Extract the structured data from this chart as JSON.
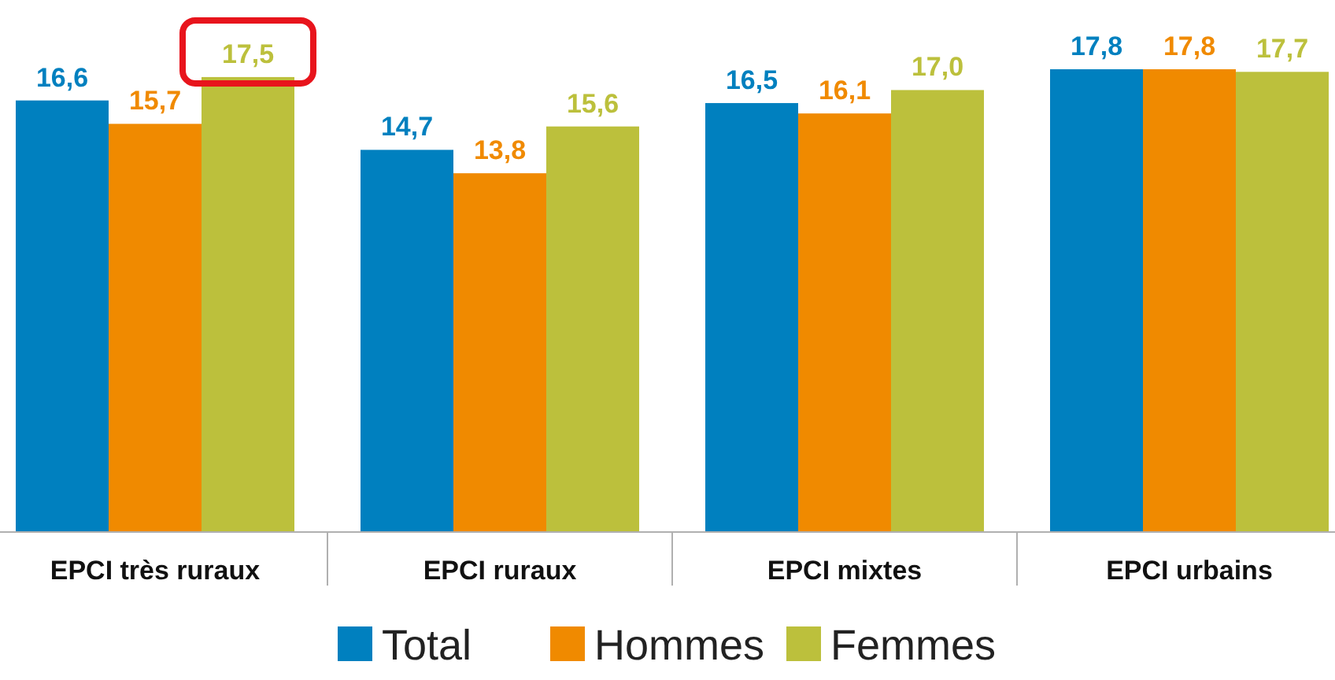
{
  "chart_data": {
    "type": "bar",
    "categories": [
      "EPCI très ruraux",
      "EPCI ruraux",
      "EPCI mixtes",
      "EPCI urbains"
    ],
    "series": [
      {
        "name": "Total",
        "color": "#0080bf",
        "values": [
          16.6,
          14.7,
          16.5,
          17.8
        ],
        "value_labels": [
          "16,6",
          "14,7",
          "16,5",
          "17,8"
        ]
      },
      {
        "name": "Hommes",
        "color": "#f08a00",
        "values": [
          15.7,
          13.8,
          16.1,
          17.8
        ],
        "value_labels": [
          "15,7",
          "13,8",
          "16,1",
          "17,8"
        ]
      },
      {
        "name": "Femmes",
        "color": "#bcc03c",
        "values": [
          17.5,
          15.6,
          17.0,
          17.7
        ],
        "value_labels": [
          "17,5",
          "15,6",
          "17,0",
          "17,7"
        ]
      }
    ],
    "legend": "bottom",
    "grid": false
  }
}
